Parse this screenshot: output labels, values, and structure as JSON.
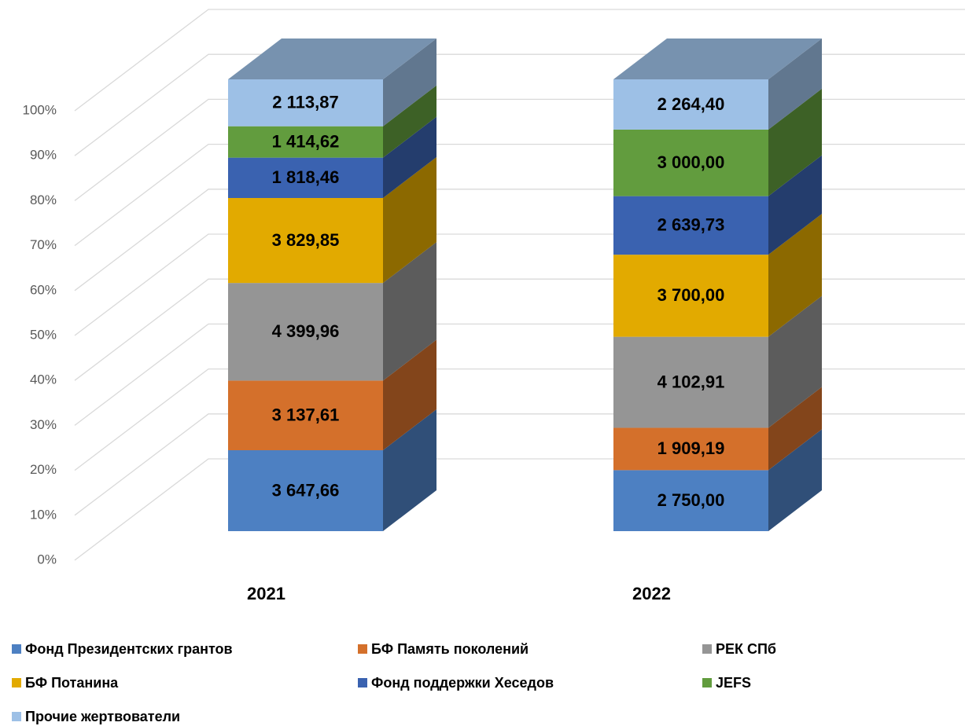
{
  "chart_data": {
    "type": "stacked_bar_3d_percent",
    "categories": [
      "2021",
      "2022"
    ],
    "series": [
      {
        "name": "Фонд Президентских грантов",
        "color": "#4d80c2",
        "values": [
          3647.66,
          2750.0
        ],
        "value_labels": [
          "3 647,66",
          "2 750,00"
        ]
      },
      {
        "name": "БФ Память поколений",
        "color": "#d4702b",
        "values": [
          3137.61,
          1909.19
        ],
        "value_labels": [
          "3 137,61",
          "1 909,19"
        ]
      },
      {
        "name": "РЕК СПб",
        "color": "#959595",
        "values": [
          4399.96,
          4102.91
        ],
        "value_labels": [
          "4 399,96",
          "4 102,91"
        ]
      },
      {
        "name": "БФ Потанина",
        "color": "#e2aa00",
        "values": [
          3829.85,
          3700.0
        ],
        "value_labels": [
          "3 829,85",
          "3 700,00"
        ]
      },
      {
        "name": "Фонд поддержки Хеседов",
        "color": "#3a62b0",
        "values": [
          1818.46,
          2639.73
        ],
        "value_labels": [
          "1 818,46",
          "2 639,73"
        ]
      },
      {
        "name": "JEFS",
        "color": "#629c3e",
        "values": [
          1414.62,
          3000.0
        ],
        "value_labels": [
          "1 414,62",
          "3 000,00"
        ]
      },
      {
        "name": "Прочие жертвователи",
        "color": "#9dc0e6",
        "values": [
          2113.87,
          2264.4
        ],
        "value_labels": [
          "2 113,87",
          "2 264,40"
        ]
      }
    ],
    "ylim": [
      0,
      100
    ],
    "yticks": [
      {
        "value": 0,
        "label": "0%"
      },
      {
        "value": 10,
        "label": "10%"
      },
      {
        "value": 20,
        "label": "20%"
      },
      {
        "value": 30,
        "label": "30%"
      },
      {
        "value": 40,
        "label": "40%"
      },
      {
        "value": 50,
        "label": "50%"
      },
      {
        "value": 60,
        "label": "60%"
      },
      {
        "value": 70,
        "label": "70%"
      },
      {
        "value": 80,
        "label": "80%"
      },
      {
        "value": 90,
        "label": "90%"
      },
      {
        "value": 100,
        "label": "100%"
      }
    ],
    "grid": true,
    "legend": "bottom"
  }
}
